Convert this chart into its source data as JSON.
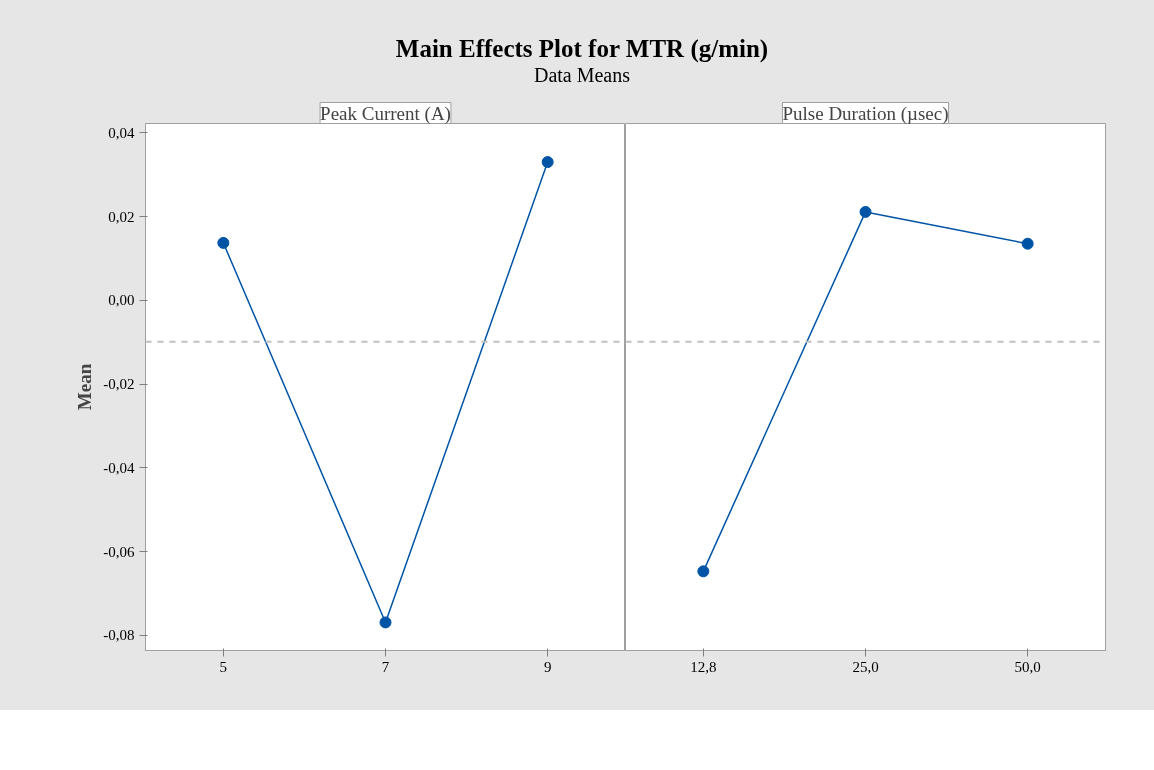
{
  "chart_data": [
    {
      "type": "line",
      "title": "Main Effects Plot for MTR (g/min)",
      "subtitle": "Data Means",
      "xlabel": "Peak Current (A)",
      "ylabel": "Mean",
      "categories": [
        "5",
        "7",
        "9"
      ],
      "series": [
        {
          "color": "#0054a6",
          "values": [
            0.0137,
            -0.0769,
            0.033
          ]
        }
      ],
      "ylim": [
        -0.0836,
        0.0422
      ],
      "yticks": [
        {
          "value": 0.04,
          "label": "0,04"
        },
        {
          "value": 0.02,
          "label": "0,02"
        },
        {
          "value": 0.0,
          "label": "0,00"
        },
        {
          "value": -0.02,
          "label": "-0,02"
        },
        {
          "value": -0.04,
          "label": "-0,04"
        },
        {
          "value": -0.06,
          "label": "-0,06"
        },
        {
          "value": -0.08,
          "label": "-0,08"
        }
      ],
      "ref_lines": [
        {
          "axis": "y",
          "value": -0.0099,
          "color": "#c0c0c0",
          "line_style": "dashed"
        }
      ],
      "marker": "circle",
      "grid": false
    },
    {
      "type": "line",
      "xlabel": "Pulse Duration (µsec)",
      "categories": [
        "12,8",
        "25,0",
        "50,0"
      ],
      "series": [
        {
          "color": "#0054a6",
          "values": [
            -0.0647,
            0.0211,
            0.0135
          ]
        }
      ],
      "ylim": [
        -0.0836,
        0.0422
      ],
      "tick_labels": "x",
      "ref_lines": [
        {
          "axis": "y",
          "value": -0.0099,
          "color": "#c0c0c0",
          "line_style": "dashed"
        }
      ],
      "marker": "circle",
      "grid": false
    }
  ]
}
